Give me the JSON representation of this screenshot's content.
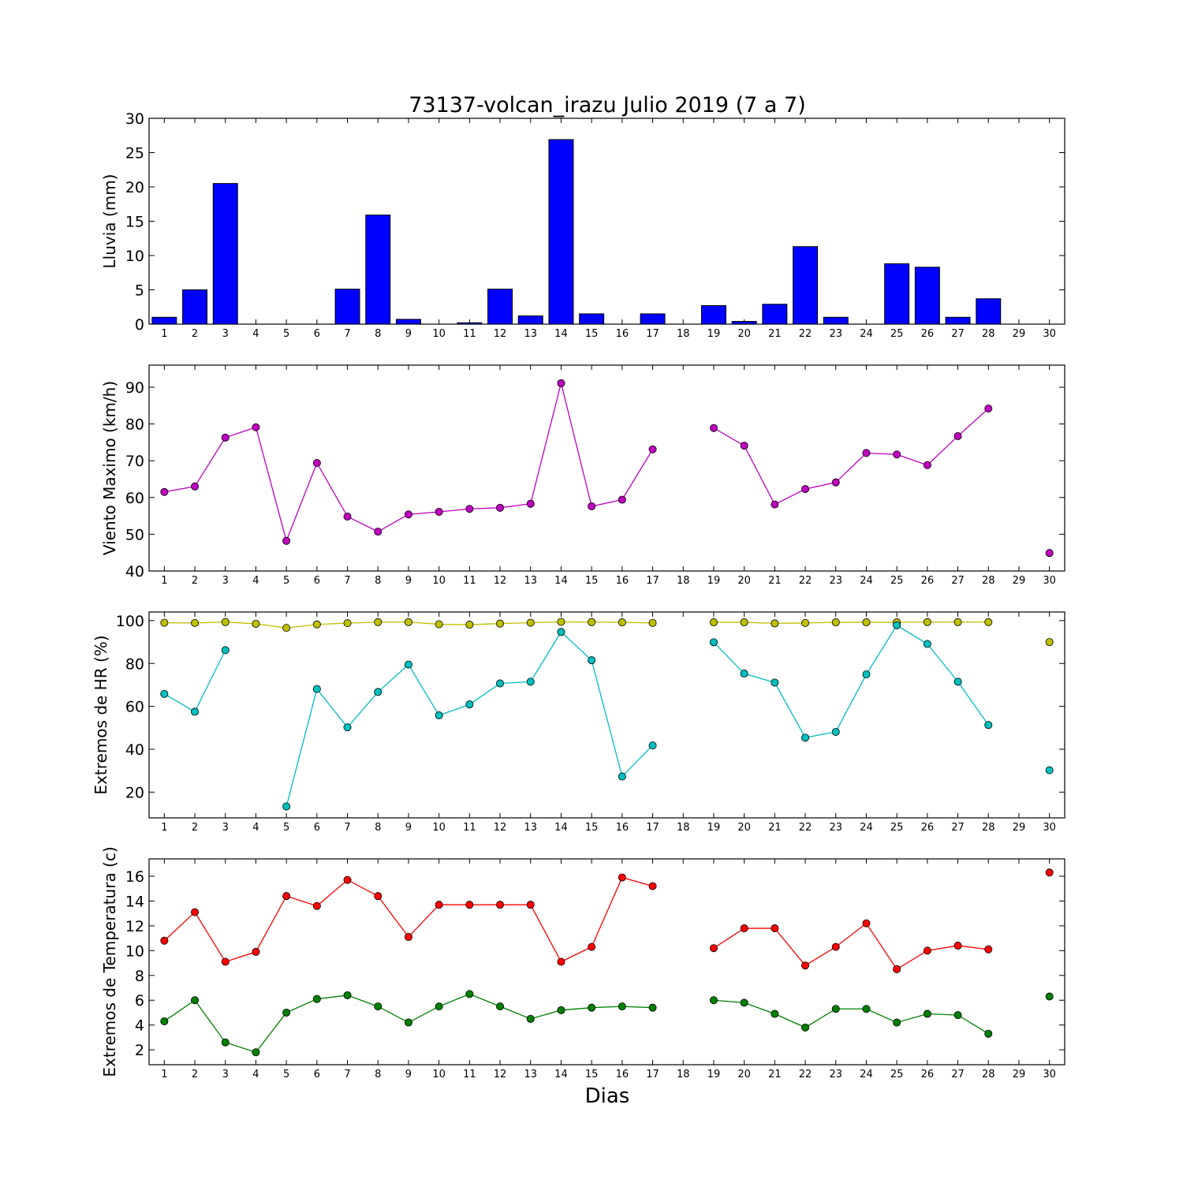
{
  "title": "73137-volcan_irazu Julio 2019  (7 a 7)",
  "xlabel": "Dias",
  "x_ticks": [
    1,
    2,
    3,
    4,
    5,
    6,
    7,
    8,
    9,
    10,
    11,
    12,
    13,
    14,
    15,
    16,
    17,
    18,
    19,
    20,
    21,
    22,
    23,
    24,
    25,
    26,
    27,
    28,
    29,
    30
  ],
  "colors": {
    "rain_bar": "#0000ff",
    "wind": "#bf00bf",
    "hr_max": "#bfbf00",
    "hr_min": "#00bfbf",
    "temp_max": "#ff0000",
    "temp_min": "#008000"
  },
  "chart_data": [
    {
      "type": "bar",
      "ylabel": "Lluvia (mm)",
      "ylim": [
        0,
        30
      ],
      "yticks": [
        0,
        5,
        10,
        15,
        20,
        25,
        30
      ],
      "xlim": [
        0.5,
        30.5
      ],
      "x": [
        1,
        2,
        3,
        4,
        5,
        6,
        7,
        8,
        9,
        10,
        11,
        12,
        13,
        14,
        15,
        16,
        17,
        18,
        19,
        20,
        21,
        22,
        23,
        24,
        25,
        26,
        27,
        28,
        29,
        30
      ],
      "series": [
        {
          "values": [
            1.0,
            5.0,
            20.5,
            0,
            0,
            0,
            5.1,
            15.9,
            0.7,
            0,
            0.2,
            5.1,
            1.2,
            26.9,
            1.5,
            0,
            1.5,
            null,
            2.7,
            0.4,
            2.9,
            11.3,
            1.0,
            0,
            8.8,
            8.3,
            1.0,
            3.7,
            null,
            null
          ]
        }
      ]
    },
    {
      "type": "line",
      "ylabel": "Viento Maximo (km/h)",
      "ylim": [
        40,
        96
      ],
      "yticks": [
        40,
        50,
        60,
        70,
        80,
        90
      ],
      "xlim": [
        0.5,
        30.5
      ],
      "x": [
        1,
        2,
        3,
        4,
        5,
        6,
        7,
        8,
        9,
        10,
        11,
        12,
        13,
        14,
        15,
        16,
        17,
        18,
        19,
        20,
        21,
        22,
        23,
        24,
        25,
        26,
        27,
        28,
        29,
        30
      ],
      "series": [
        {
          "color": "#bf00bf",
          "values": [
            61.5,
            63,
            76.3,
            79.1,
            48.2,
            69.4,
            54.8,
            50.7,
            55.4,
            56.1,
            56.9,
            57.2,
            58.3,
            91.1,
            57.6,
            59.4,
            73.1,
            null,
            78.9,
            74.1,
            58.1,
            62.3,
            64.1,
            72.1,
            71.7,
            68.8,
            76.7,
            84.2,
            null,
            44.9
          ]
        }
      ]
    },
    {
      "type": "line",
      "ylabel": "Extremos de HR (%)",
      "ylim": [
        8,
        104
      ],
      "yticks": [
        20,
        40,
        60,
        80,
        100
      ],
      "xlim": [
        0.5,
        30.5
      ],
      "x": [
        1,
        2,
        3,
        4,
        5,
        6,
        7,
        8,
        9,
        10,
        11,
        12,
        13,
        14,
        15,
        16,
        17,
        18,
        19,
        20,
        21,
        22,
        23,
        24,
        25,
        26,
        27,
        28,
        29,
        30
      ],
      "series": [
        {
          "color": "#bfbf00",
          "values": [
            99,
            98.9,
            99.3,
            98.5,
            96.6,
            98.2,
            98.8,
            99.3,
            99.3,
            98.3,
            98.1,
            98.6,
            99,
            99.4,
            99.3,
            99.2,
            98.9,
            null,
            99.2,
            99.2,
            98.7,
            98.9,
            99.2,
            99.2,
            99.2,
            99.3,
            99.3,
            99.3,
            null,
            90
          ]
        },
        {
          "color": "#00bfbf",
          "values": [
            65.8,
            57.5,
            86.2,
            null,
            13.3,
            68.1,
            50.2,
            66.7,
            79.5,
            55.8,
            60.9,
            70.7,
            71.5,
            94.7,
            81.5,
            27.3,
            41.8,
            null,
            89.9,
            75.3,
            71.1,
            45.4,
            48.1,
            74.9,
            97.8,
            89.1,
            71.5,
            51.3,
            null,
            30.2
          ]
        }
      ]
    },
    {
      "type": "line",
      "ylabel": "Extremos de Temperatura (c)",
      "ylim": [
        0.8,
        17.4
      ],
      "yticks": [
        2,
        4,
        6,
        8,
        10,
        12,
        14,
        16
      ],
      "xlim": [
        0.5,
        30.5
      ],
      "x": [
        1,
        2,
        3,
        4,
        5,
        6,
        7,
        8,
        9,
        10,
        11,
        12,
        13,
        14,
        15,
        16,
        17,
        18,
        19,
        20,
        21,
        22,
        23,
        24,
        25,
        26,
        27,
        28,
        29,
        30
      ],
      "series": [
        {
          "color": "#ff0000",
          "values": [
            10.8,
            13.1,
            9.1,
            9.9,
            14.4,
            13.6,
            15.7,
            14.4,
            11.1,
            13.7,
            13.7,
            13.7,
            13.7,
            9.1,
            10.3,
            15.9,
            15.2,
            null,
            10.2,
            11.8,
            11.8,
            8.8,
            10.3,
            12.2,
            8.5,
            10,
            10.4,
            10.1,
            null,
            16.3
          ]
        },
        {
          "color": "#008000",
          "values": [
            4.3,
            6,
            2.6,
            1.8,
            5,
            6.1,
            6.4,
            5.5,
            4.2,
            5.5,
            6.5,
            5.5,
            4.5,
            5.2,
            5.4,
            5.5,
            5.4,
            null,
            6,
            5.8,
            4.9,
            3.8,
            5.3,
            5.3,
            4.2,
            4.9,
            4.8,
            3.3,
            null,
            6.3
          ]
        }
      ]
    }
  ]
}
